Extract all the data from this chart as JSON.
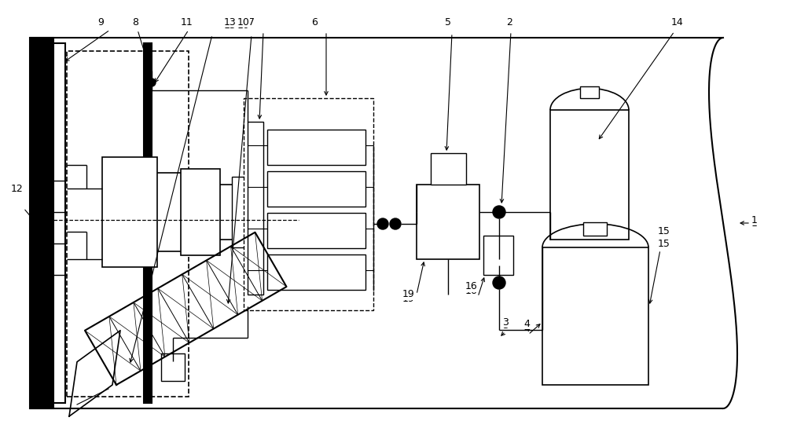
{
  "bg_color": "#ffffff",
  "lc": "#000000",
  "fig_width": 10.0,
  "fig_height": 5.64,
  "dpi": 100
}
